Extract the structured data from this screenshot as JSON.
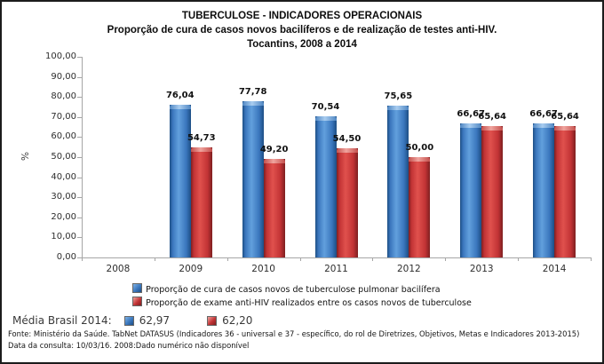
{
  "chart_data": {
    "type": "bar",
    "title": "TUBERCULOSE - INDICADORES OPERACIONAIS",
    "subtitle": "Proporção de cura de casos novos bacilíferos e de realização de testes anti-HIV.",
    "subtitle2": "Tocantins, 2008 a 2014",
    "categories": [
      "2008",
      "2009",
      "2010",
      "2011",
      "2012",
      "2013",
      "2014"
    ],
    "series": [
      {
        "name": "Proporção de cura de casos novos de tuberculose pulmonar bacilífera",
        "color": "#3a76bd",
        "values": [
          null,
          76.04,
          77.78,
          70.54,
          75.65,
          66.67,
          66.67
        ],
        "value_labels": [
          "",
          "76,04",
          "77,78",
          "70,54",
          "75,65",
          "66,67",
          "66,67"
        ]
      },
      {
        "name": "Proporção de exame anti-HIV realizados entre os casos novos de tuberculose",
        "color": "#c23335",
        "values": [
          null,
          54.73,
          49.2,
          54.5,
          50.0,
          65.64,
          65.64
        ],
        "value_labels": [
          "",
          "54,73",
          "49,20",
          "54,50",
          "50,00",
          "65,64",
          "65,64"
        ]
      }
    ],
    "xlabel": "",
    "ylabel": "%",
    "ylim": [
      0,
      100
    ],
    "ytick_step": 10,
    "ytick_labels": [
      "0,00",
      "10,00",
      "20,00",
      "30,00",
      "40,00",
      "50,00",
      "60,00",
      "70,00",
      "80,00",
      "90,00",
      "100,00"
    ],
    "grid": false,
    "legend_position": "bottom",
    "missing_data_note": "2008 sem barras (dado não disponível)"
  },
  "footer": {
    "media_label": "Média Brasil 2014:",
    "media_value_blue": "62,97",
    "media_value_red": "62,20",
    "fonte": "Fonte: Ministério da Saúde. TabNet DATASUS (Indicadores 36 - universal e 37 - específico, do rol de Diretrizes, Objetivos, Metas e Indicadores 2013-2015)",
    "consulta": "Data da consulta: 10/03/16. 2008:Dado numérico não disponível"
  }
}
